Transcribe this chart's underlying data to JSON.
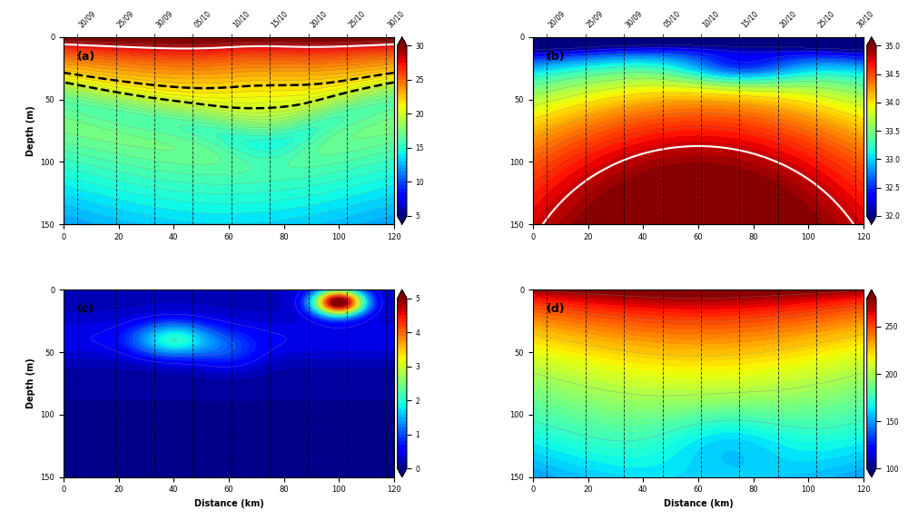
{
  "panel_labels": [
    "(a)",
    "(b)",
    "(c)",
    "(d)"
  ],
  "xlabel": "Distance (km)",
  "ylabel": "Depth (m)",
  "temp_vmin": 5,
  "temp_vmax": 30,
  "sal_vmin": 32,
  "sal_vmax": 35,
  "chl_vmin": 0,
  "chl_vmax": 5,
  "do_vmin": 100,
  "do_vmax": 280,
  "date_labels": [
    "20/09",
    "25/09",
    "30/09",
    "05/10",
    "10/10",
    "15/10",
    "20/10",
    "25/10",
    "30/10"
  ],
  "figsize": [
    10,
    5.84
  ],
  "dpi": 100
}
